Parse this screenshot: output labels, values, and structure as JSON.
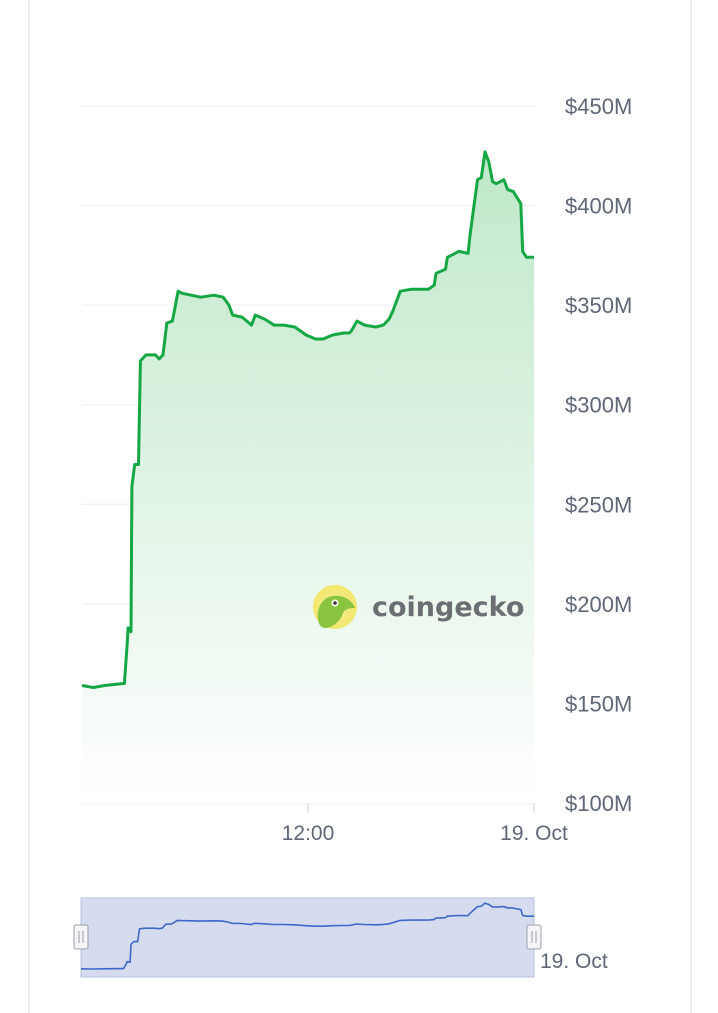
{
  "chart_data": {
    "type": "area",
    "ylim": [
      100,
      450
    ],
    "ytick_labels": [
      "$450M",
      "$400M",
      "$350M",
      "$300M",
      "$250M",
      "$200M",
      "$150M",
      "$100M"
    ],
    "yticks": [
      450,
      400,
      350,
      300,
      250,
      200,
      150,
      100
    ],
    "xlim": [
      0,
      24
    ],
    "xtick_labels": [
      "12:00",
      "19. Oct"
    ],
    "xticks": [
      12,
      24
    ],
    "grid": true,
    "series": [
      {
        "color": "#16a745",
        "x": [
          0,
          0.6,
          1.2,
          2.2,
          2.25,
          2.4,
          2.45,
          2.6,
          2.65,
          2.8,
          3.0,
          3.1,
          3.4,
          3.6,
          3.9,
          4.1,
          4.3,
          4.5,
          4.8,
          5.1,
          5.3,
          5.8,
          6.3,
          7.0,
          7.5,
          7.8,
          8.0,
          8.5,
          9.0,
          9.2,
          9.7,
          10.2,
          10.7,
          11.3,
          11.9,
          12.4,
          12.8,
          13.3,
          13.9,
          14.2,
          14.3,
          14.6,
          15.0,
          15.6,
          16.0,
          16.3,
          16.5,
          16.9,
          17.5,
          18.4,
          18.7,
          18.8,
          19.3,
          19.4,
          19.6,
          20.0,
          20.5,
          20.6,
          21.0,
          21.2,
          21.4,
          21.6,
          21.8,
          22.0,
          22.4,
          22.6,
          22.9,
          23.1,
          23.3,
          23.4,
          23.6,
          24.0
        ],
        "values": [
          159,
          158,
          159,
          160,
          160,
          180,
          188,
          186,
          259,
          270,
          270,
          322,
          325,
          325,
          325,
          323,
          325,
          341,
          342,
          357,
          356,
          355,
          354,
          355,
          354,
          350,
          345,
          344,
          340,
          345,
          343,
          340,
          340,
          339,
          335,
          333,
          333,
          335,
          336,
          336,
          337,
          342,
          340,
          339,
          340,
          343,
          347,
          357,
          358,
          358,
          360,
          366,
          368,
          374,
          375,
          377,
          376,
          385,
          413,
          414,
          427,
          422,
          412,
          411,
          413,
          408,
          407,
          404,
          401,
          377,
          374,
          374
        ]
      }
    ]
  },
  "watermark": {
    "text": "coingecko"
  },
  "navigator": {
    "label": "19. Oct",
    "left_handle_icon": "grip-handle-icon",
    "right_handle_icon": "grip-handle-icon",
    "line_color": "#3f68c8",
    "fill_color": "#d5dcef"
  },
  "colors": {
    "line": "#16a745",
    "area_top": "#bfe8c9",
    "grid": "#eceef1",
    "labels": "#5f6776"
  }
}
